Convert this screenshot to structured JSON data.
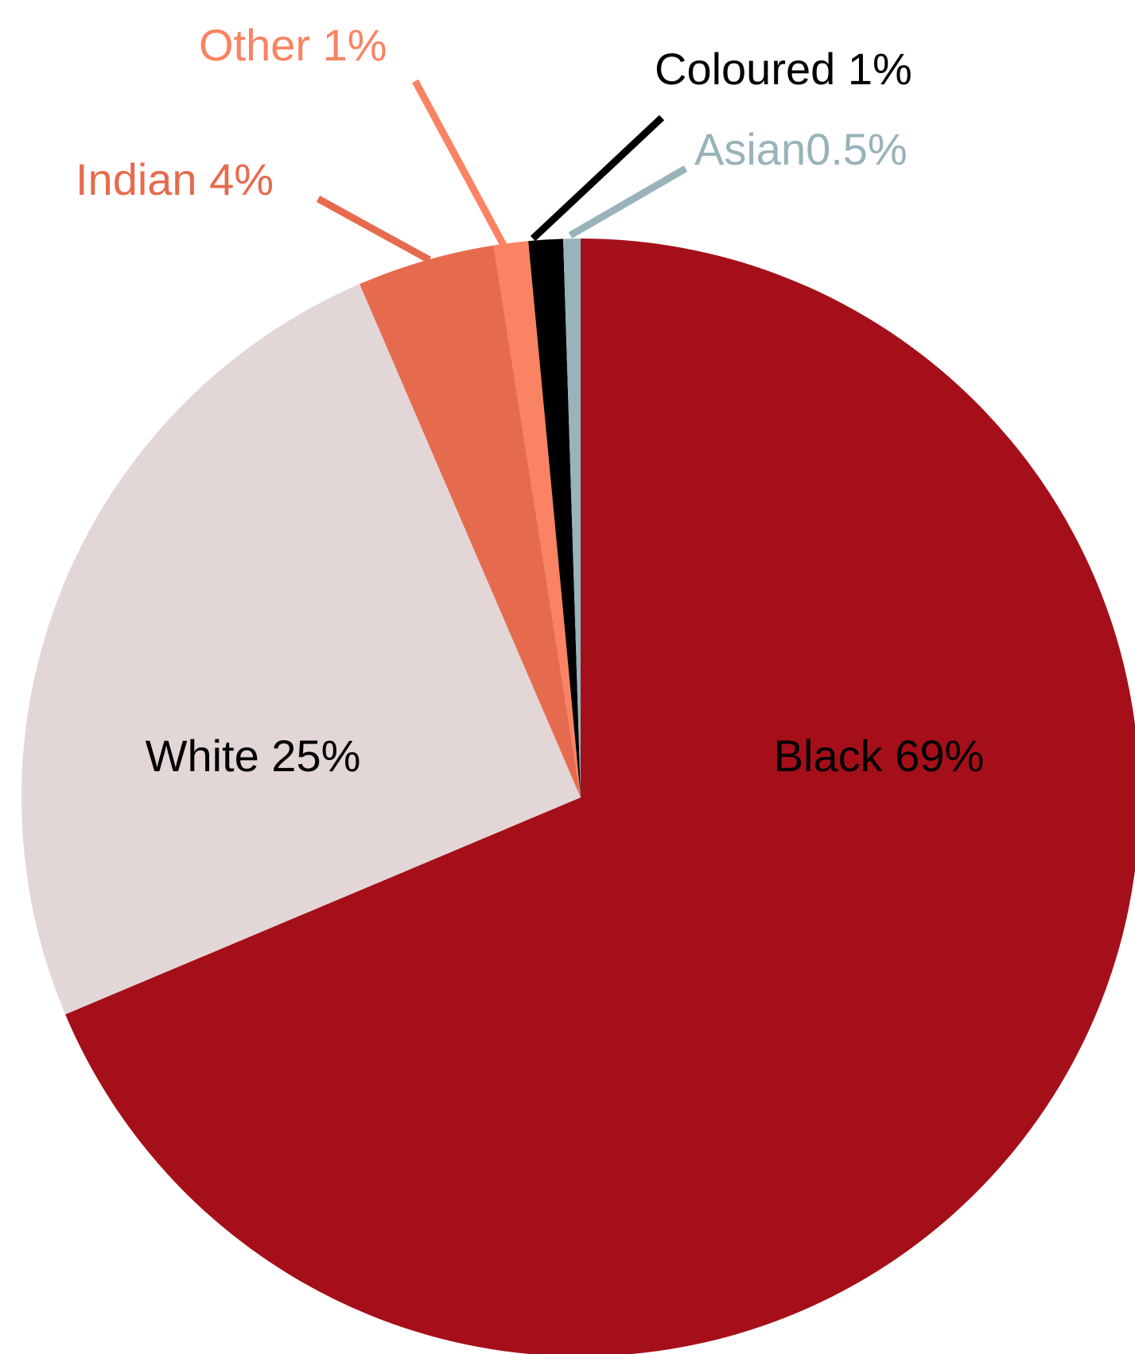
{
  "chart_data": {
    "type": "pie",
    "start": "top",
    "direction": "clockwise",
    "slices": [
      {
        "label": "Black 69%",
        "value": 69,
        "color": "#a50f19",
        "text_color": "#000000",
        "label_position": "inside"
      },
      {
        "label": "White 25%",
        "value": 25,
        "color": "#e3d6d7",
        "text_color": "#000000",
        "label_position": "inside"
      },
      {
        "label": "Indian 4%",
        "value": 4,
        "color": "#e66b4e",
        "text_color": "#e66b4e",
        "label_position": "outside"
      },
      {
        "label": "Other 1%",
        "value": 1,
        "color": "#f98363",
        "text_color": "#f98363",
        "label_position": "outside"
      },
      {
        "label": "Coloured 1%",
        "value": 1,
        "color": "#000000",
        "text_color": "#000000",
        "label_position": "outside"
      },
      {
        "label": "Asian0.5%",
        "value": 0.5,
        "color": "#98b3b9",
        "text_color": "#98b3b9",
        "label_position": "outside"
      }
    ]
  }
}
